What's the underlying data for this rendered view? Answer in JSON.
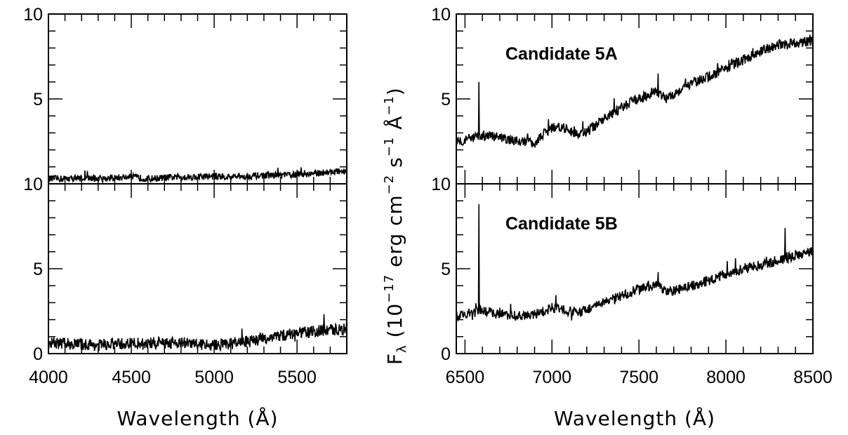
{
  "chart_data": [
    {
      "id": "left-top",
      "type": "line",
      "xlim": [
        4000,
        5800
      ],
      "ylim": [
        0,
        10
      ],
      "y_tick_labels": [
        "10",
        "5"
      ],
      "x_tick_labels": [],
      "annotation": "",
      "series": [
        {
          "x": [
            4000,
            4100,
            4200,
            4300,
            4400,
            4500,
            4600,
            4700,
            4800,
            4900,
            5000,
            5100,
            5200,
            5300,
            5400,
            5500,
            5600,
            5700,
            5800
          ],
          "y": [
            0.3,
            0.3,
            0.35,
            0.3,
            0.35,
            0.4,
            0.3,
            0.35,
            0.4,
            0.4,
            0.45,
            0.4,
            0.45,
            0.5,
            0.5,
            0.55,
            0.6,
            0.7,
            0.75
          ],
          "noise": 0.2
        }
      ]
    },
    {
      "id": "left-bottom",
      "type": "line",
      "xlim": [
        4000,
        5800
      ],
      "ylim": [
        0,
        10
      ],
      "y_tick_labels": [
        "10",
        "5",
        "0"
      ],
      "x_tick_labels": [
        "4000",
        "4500",
        "5000",
        "5500"
      ],
      "xlabel": "Wavelength (Å)",
      "annotation": "",
      "series": [
        {
          "x": [
            4000,
            4100,
            4200,
            4300,
            4400,
            4500,
            4600,
            4700,
            4800,
            4900,
            5000,
            5100,
            5200,
            5300,
            5400,
            5500,
            5600,
            5700,
            5800
          ],
          "y": [
            0.6,
            0.6,
            0.55,
            0.5,
            0.55,
            0.6,
            0.6,
            0.65,
            0.65,
            0.55,
            0.5,
            0.6,
            0.7,
            0.9,
            1.05,
            1.2,
            1.3,
            1.4,
            1.45
          ],
          "noise": 0.35
        }
      ]
    },
    {
      "id": "right-top",
      "type": "line",
      "xlim": [
        6450,
        8500
      ],
      "ylim": [
        0,
        10
      ],
      "y_tick_labels": [
        "10",
        "5"
      ],
      "x_tick_labels": [],
      "annotation": "Candidate 5A",
      "series": [
        {
          "x": [
            6450,
            6500,
            6550,
            6600,
            6650,
            6700,
            6750,
            6800,
            6850,
            6900,
            6950,
            7000,
            7050,
            7100,
            7150,
            7200,
            7300,
            7400,
            7500,
            7600,
            7650,
            7700,
            7800,
            7900,
            8000,
            8100,
            8200,
            8300,
            8400,
            8500
          ],
          "y": [
            2.5,
            2.6,
            2.7,
            2.8,
            2.8,
            2.7,
            2.6,
            2.5,
            2.5,
            2.4,
            2.9,
            3.3,
            3.4,
            3.1,
            2.9,
            3.1,
            3.8,
            4.5,
            5.0,
            5.5,
            5.0,
            5.3,
            5.9,
            6.3,
            6.8,
            7.3,
            7.8,
            8.2,
            8.3,
            8.4
          ],
          "noise": 0.3,
          "spikes": [
            [
              6580,
              6.0
            ],
            [
              7610,
              6.5
            ]
          ]
        }
      ]
    },
    {
      "id": "right-bottom",
      "type": "line",
      "xlim": [
        6450,
        8500
      ],
      "ylim": [
        0,
        10
      ],
      "y_tick_labels": [
        "10",
        "5",
        "0"
      ],
      "x_tick_labels": [
        "6500",
        "7000",
        "7500",
        "8000",
        "8500"
      ],
      "xlabel": "Wavelength (Å)",
      "annotation": "Candidate 5B",
      "series": [
        {
          "x": [
            6450,
            6500,
            6550,
            6600,
            6650,
            6700,
            6750,
            6800,
            6850,
            6900,
            6950,
            7000,
            7050,
            7100,
            7150,
            7200,
            7300,
            7400,
            7500,
            7600,
            7650,
            7700,
            7800,
            7900,
            8000,
            8100,
            8200,
            8300,
            8400,
            8500
          ],
          "y": [
            2.2,
            2.3,
            2.4,
            2.6,
            2.4,
            2.3,
            2.3,
            2.2,
            2.2,
            2.3,
            2.5,
            2.7,
            2.6,
            2.5,
            2.4,
            2.6,
            3.0,
            3.4,
            3.8,
            4.1,
            3.6,
            3.7,
            4.0,
            4.3,
            4.7,
            5.0,
            5.2,
            5.5,
            5.8,
            6.0
          ],
          "noise": 0.3,
          "spikes": [
            [
              6580,
              8.8
            ],
            [
              7610,
              4.8
            ],
            [
              8340,
              7.4
            ]
          ]
        }
      ]
    }
  ],
  "ylabel": {
    "base": "F",
    "sub": "λ",
    "text_a": "(10",
    "sup_a": "−17",
    "text_b": "erg cm",
    "sup_b": "−2",
    "text_c": "s",
    "sup_c": "−1",
    "text_d": "Å",
    "sup_d": "−1",
    "text_e": ")"
  },
  "colors": {
    "line": "#000000",
    "background": "#ffffff"
  }
}
